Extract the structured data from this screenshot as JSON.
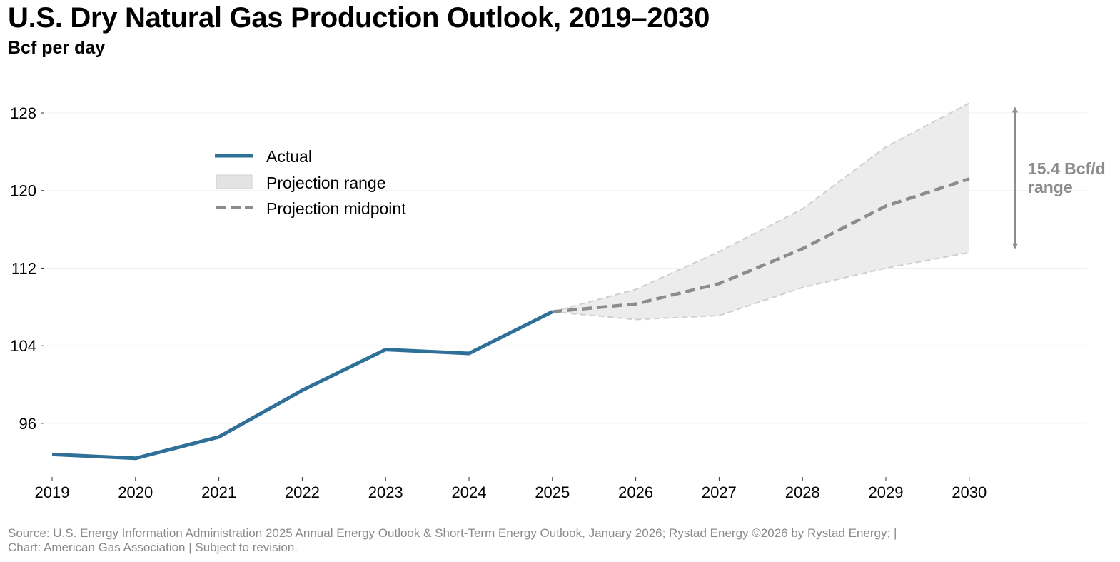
{
  "header": {
    "title": "U.S. Dry Natural Gas Production Outlook, 2019–2030",
    "subtitle": "Bcf per day"
  },
  "footer": {
    "line1": "Source: U.S. Energy Information Administration 2025 Annual Energy Outlook & Short-Term Energy Outlook, January 2026; Rystad Energy ©2026 by Rystad Energy; |",
    "line2": "Chart: American Gas Association | Subject to revision."
  },
  "colors": {
    "actual": "#2e7098",
    "midpoint": "#8c8c8c",
    "range_fill": "#ececec",
    "range_edge": "#cfcfcf",
    "annotation": "#8c8c8c",
    "grid": "#f0f0f0"
  },
  "chart_data": {
    "type": "line",
    "title": "U.S. Dry Natural Gas Production Outlook, 2019–2030",
    "subtitle": "Bcf per day",
    "xlabel": "",
    "ylabel": "Bcf per day",
    "x": [
      2019,
      2020,
      2021,
      2022,
      2023,
      2024,
      2025,
      2026,
      2027,
      2028,
      2029,
      2030
    ],
    "xticks": [
      "2019",
      "2020",
      "2021",
      "2022",
      "2023",
      "2024",
      "2025",
      "2026",
      "2027",
      "2028",
      "2029",
      "2030"
    ],
    "yticks": [
      96,
      104,
      112,
      120,
      128
    ],
    "ylim": [
      89.5,
      130.5
    ],
    "grid": "horizontal",
    "series": [
      {
        "name": "Actual",
        "style": "solid",
        "x": [
          2019,
          2020,
          2021,
          2022,
          2023,
          2024,
          2025
        ],
        "values": [
          92.8,
          92.4,
          94.6,
          99.4,
          103.6,
          103.2,
          107.5
        ]
      },
      {
        "name": "Projection midpoint",
        "style": "dashed",
        "x": [
          2025,
          2026,
          2027,
          2028,
          2029,
          2030
        ],
        "values": [
          107.5,
          108.3,
          110.4,
          114.0,
          118.4,
          121.2
        ]
      }
    ],
    "range": {
      "name": "Projection range",
      "x": [
        2025,
        2026,
        2027,
        2028,
        2029,
        2030
      ],
      "upper": [
        107.5,
        109.8,
        113.7,
        118.1,
        124.5,
        129.0
      ],
      "lower": [
        107.5,
        106.7,
        107.1,
        110.0,
        112.0,
        113.6
      ]
    },
    "legend": {
      "placement": "top-left",
      "entries": [
        "Actual",
        "Projection range",
        "Projection midpoint"
      ]
    },
    "annotation": {
      "line1": "15.4 Bcf/d",
      "line2": "range",
      "from": 113.6,
      "to": 129.0,
      "at_year": 2030
    }
  }
}
